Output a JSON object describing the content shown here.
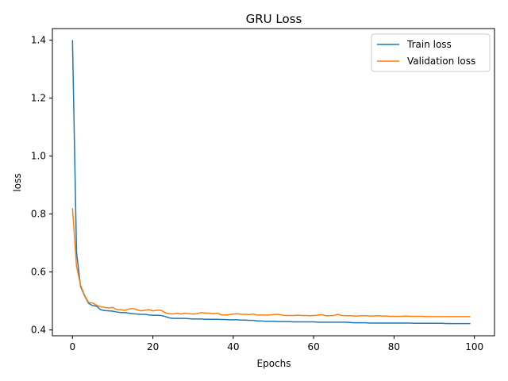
{
  "chart_data": {
    "type": "line",
    "title": "GRU Loss",
    "xlabel": "Epochs",
    "ylabel": "loss",
    "xlim": [
      -5,
      105
    ],
    "ylim": [
      0.38,
      1.44
    ],
    "xticks": [
      0,
      20,
      40,
      60,
      80,
      100
    ],
    "yticks": [
      0.4,
      0.6,
      0.8,
      1.0,
      1.2,
      1.4
    ],
    "ytick_labels": [
      "0.4",
      "0.6",
      "0.8",
      "1.0",
      "1.2",
      "1.4"
    ],
    "grid": false,
    "legend_position": "upper right",
    "series": [
      {
        "name": "Train loss",
        "color": "#1f77b4",
        "values": [
          1.4,
          0.67,
          0.55,
          0.518,
          0.492,
          0.484,
          0.482,
          0.47,
          0.467,
          0.466,
          0.465,
          0.462,
          0.46,
          0.46,
          0.458,
          0.456,
          0.455,
          0.454,
          0.454,
          0.452,
          0.451,
          0.451,
          0.45,
          0.447,
          0.442,
          0.44,
          0.44,
          0.44,
          0.44,
          0.439,
          0.438,
          0.438,
          0.438,
          0.437,
          0.437,
          0.437,
          0.437,
          0.436,
          0.436,
          0.435,
          0.435,
          0.435,
          0.434,
          0.434,
          0.433,
          0.433,
          0.431,
          0.431,
          0.43,
          0.43,
          0.43,
          0.429,
          0.429,
          0.429,
          0.429,
          0.428,
          0.428,
          0.428,
          0.428,
          0.428,
          0.428,
          0.427,
          0.427,
          0.427,
          0.427,
          0.427,
          0.427,
          0.427,
          0.427,
          0.426,
          0.425,
          0.425,
          0.425,
          0.425,
          0.424,
          0.424,
          0.424,
          0.424,
          0.424,
          0.424,
          0.424,
          0.424,
          0.424,
          0.424,
          0.424,
          0.423,
          0.423,
          0.423,
          0.423,
          0.423,
          0.423,
          0.423,
          0.423,
          0.422,
          0.422,
          0.422,
          0.422,
          0.422,
          0.422,
          0.422
        ]
      },
      {
        "name": "Validation loss",
        "color": "#ff7f0e",
        "values": [
          0.82,
          0.62,
          0.555,
          0.52,
          0.495,
          0.493,
          0.485,
          0.48,
          0.478,
          0.476,
          0.478,
          0.47,
          0.47,
          0.468,
          0.472,
          0.474,
          0.47,
          0.466,
          0.468,
          0.47,
          0.466,
          0.468,
          0.468,
          0.46,
          0.456,
          0.455,
          0.458,
          0.455,
          0.458,
          0.456,
          0.455,
          0.456,
          0.46,
          0.458,
          0.458,
          0.456,
          0.458,
          0.452,
          0.452,
          0.453,
          0.455,
          0.456,
          0.454,
          0.454,
          0.453,
          0.455,
          0.451,
          0.452,
          0.451,
          0.452,
          0.453,
          0.454,
          0.452,
          0.45,
          0.45,
          0.45,
          0.451,
          0.45,
          0.45,
          0.449,
          0.45,
          0.451,
          0.453,
          0.449,
          0.449,
          0.45,
          0.454,
          0.45,
          0.449,
          0.449,
          0.448,
          0.448,
          0.449,
          0.449,
          0.448,
          0.448,
          0.449,
          0.448,
          0.448,
          0.447,
          0.447,
          0.447,
          0.447,
          0.448,
          0.447,
          0.447,
          0.447,
          0.447,
          0.446,
          0.446,
          0.446,
          0.446,
          0.446,
          0.446,
          0.446,
          0.446,
          0.446,
          0.446,
          0.446,
          0.446
        ]
      }
    ]
  }
}
